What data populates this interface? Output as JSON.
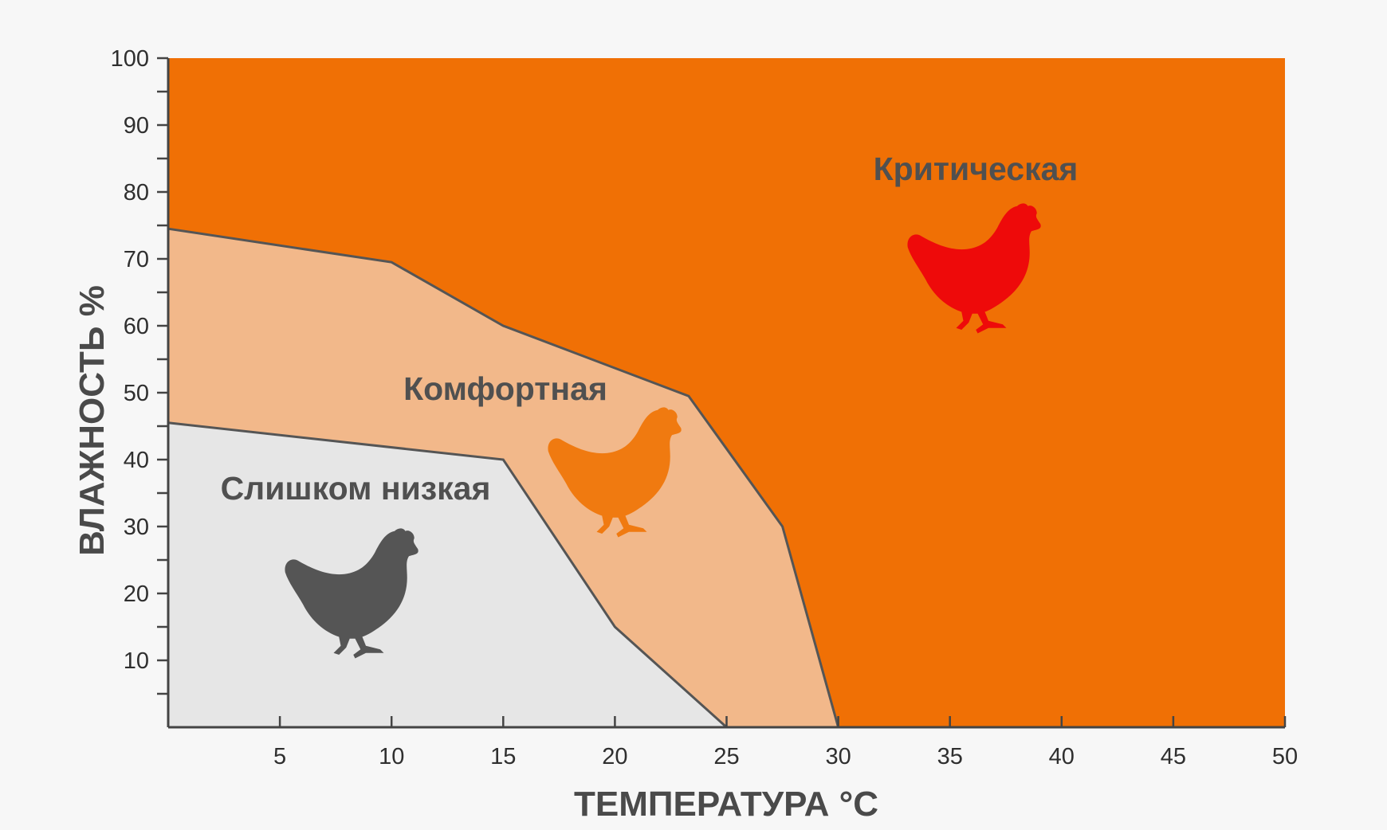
{
  "chart_data": {
    "type": "area",
    "xlabel": "ТЕМПЕРАТУРА °C",
    "ylabel": "ВЛАЖНОСТЬ %",
    "xlim": [
      0,
      50
    ],
    "ylim": [
      0,
      100
    ],
    "x_ticks": [
      5,
      10,
      15,
      20,
      25,
      30,
      35,
      40,
      45,
      50
    ],
    "y_ticks": [
      10,
      20,
      30,
      40,
      50,
      60,
      70,
      80,
      90,
      100
    ],
    "grid": false,
    "zones": [
      {
        "name": "Слишком низкая",
        "color": "#e6e6e6",
        "icon": "chicken-icon",
        "icon_color": "#555555",
        "boundary": [
          [
            0,
            45.5
          ],
          [
            15,
            40
          ],
          [
            20,
            15
          ],
          [
            25,
            0
          ]
        ]
      },
      {
        "name": "Комфортная",
        "color": "#f2b88a",
        "icon": "chicken-icon",
        "icon_color": "#f07a10",
        "boundary": [
          [
            0,
            74.5
          ],
          [
            10,
            69.5
          ],
          [
            15,
            60
          ],
          [
            23.3,
            49.5
          ],
          [
            27.5,
            30
          ],
          [
            30,
            0
          ]
        ]
      },
      {
        "name": "Критическая",
        "color": "#f07005",
        "icon": "chicken-icon",
        "icon_color": "#ee0a0a"
      }
    ]
  }
}
